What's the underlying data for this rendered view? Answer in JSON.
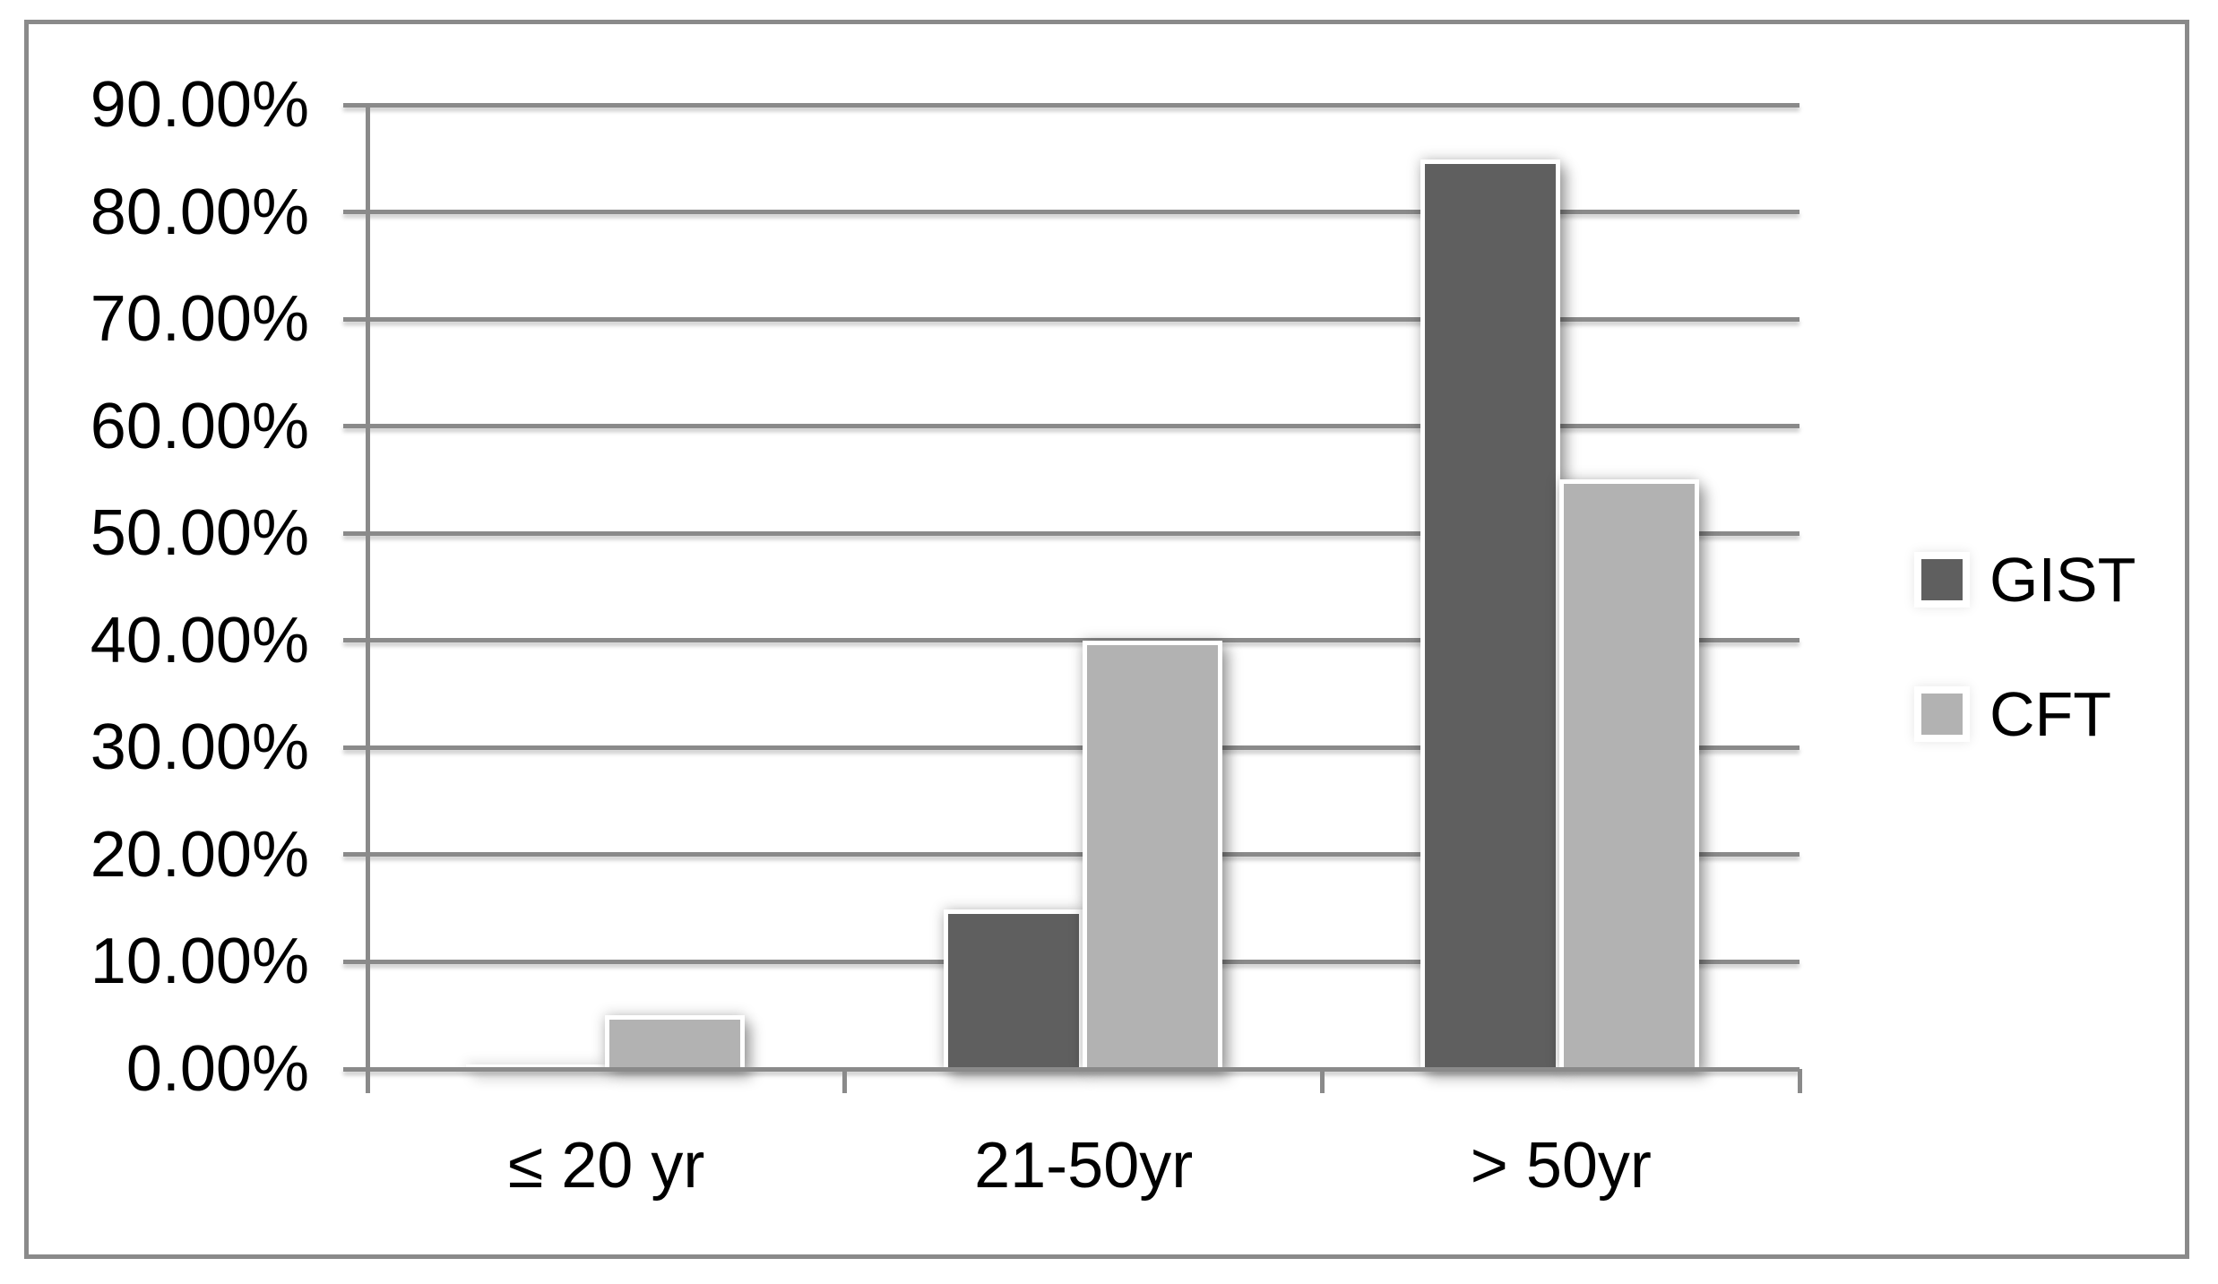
{
  "chart_data": {
    "type": "bar",
    "categories": [
      "≤ 20 yr",
      "21-50yr",
      "> 50yr"
    ],
    "series": [
      {
        "name": "GIST",
        "color": "#5f5f5f",
        "values": [
          0.0,
          14.5,
          84.5
        ]
      },
      {
        "name": "CFT",
        "color": "#b2b2b2",
        "values": [
          4.6,
          39.6,
          54.6
        ]
      }
    ],
    "value_unit": "percent",
    "y_axis": {
      "min": 0,
      "max": 90,
      "step": 10,
      "tick_labels": [
        "0.00%",
        "10.00%",
        "20.00%",
        "30.00%",
        "40.00%",
        "50.00%",
        "60.00%",
        "70.00%",
        "80.00%",
        "90.00%"
      ]
    },
    "grid": true,
    "legend_position": "right",
    "colors": {
      "axis": "#8a8a8a",
      "text": "#000000",
      "background": "#ffffff",
      "bar_border": "#ffffff"
    }
  }
}
